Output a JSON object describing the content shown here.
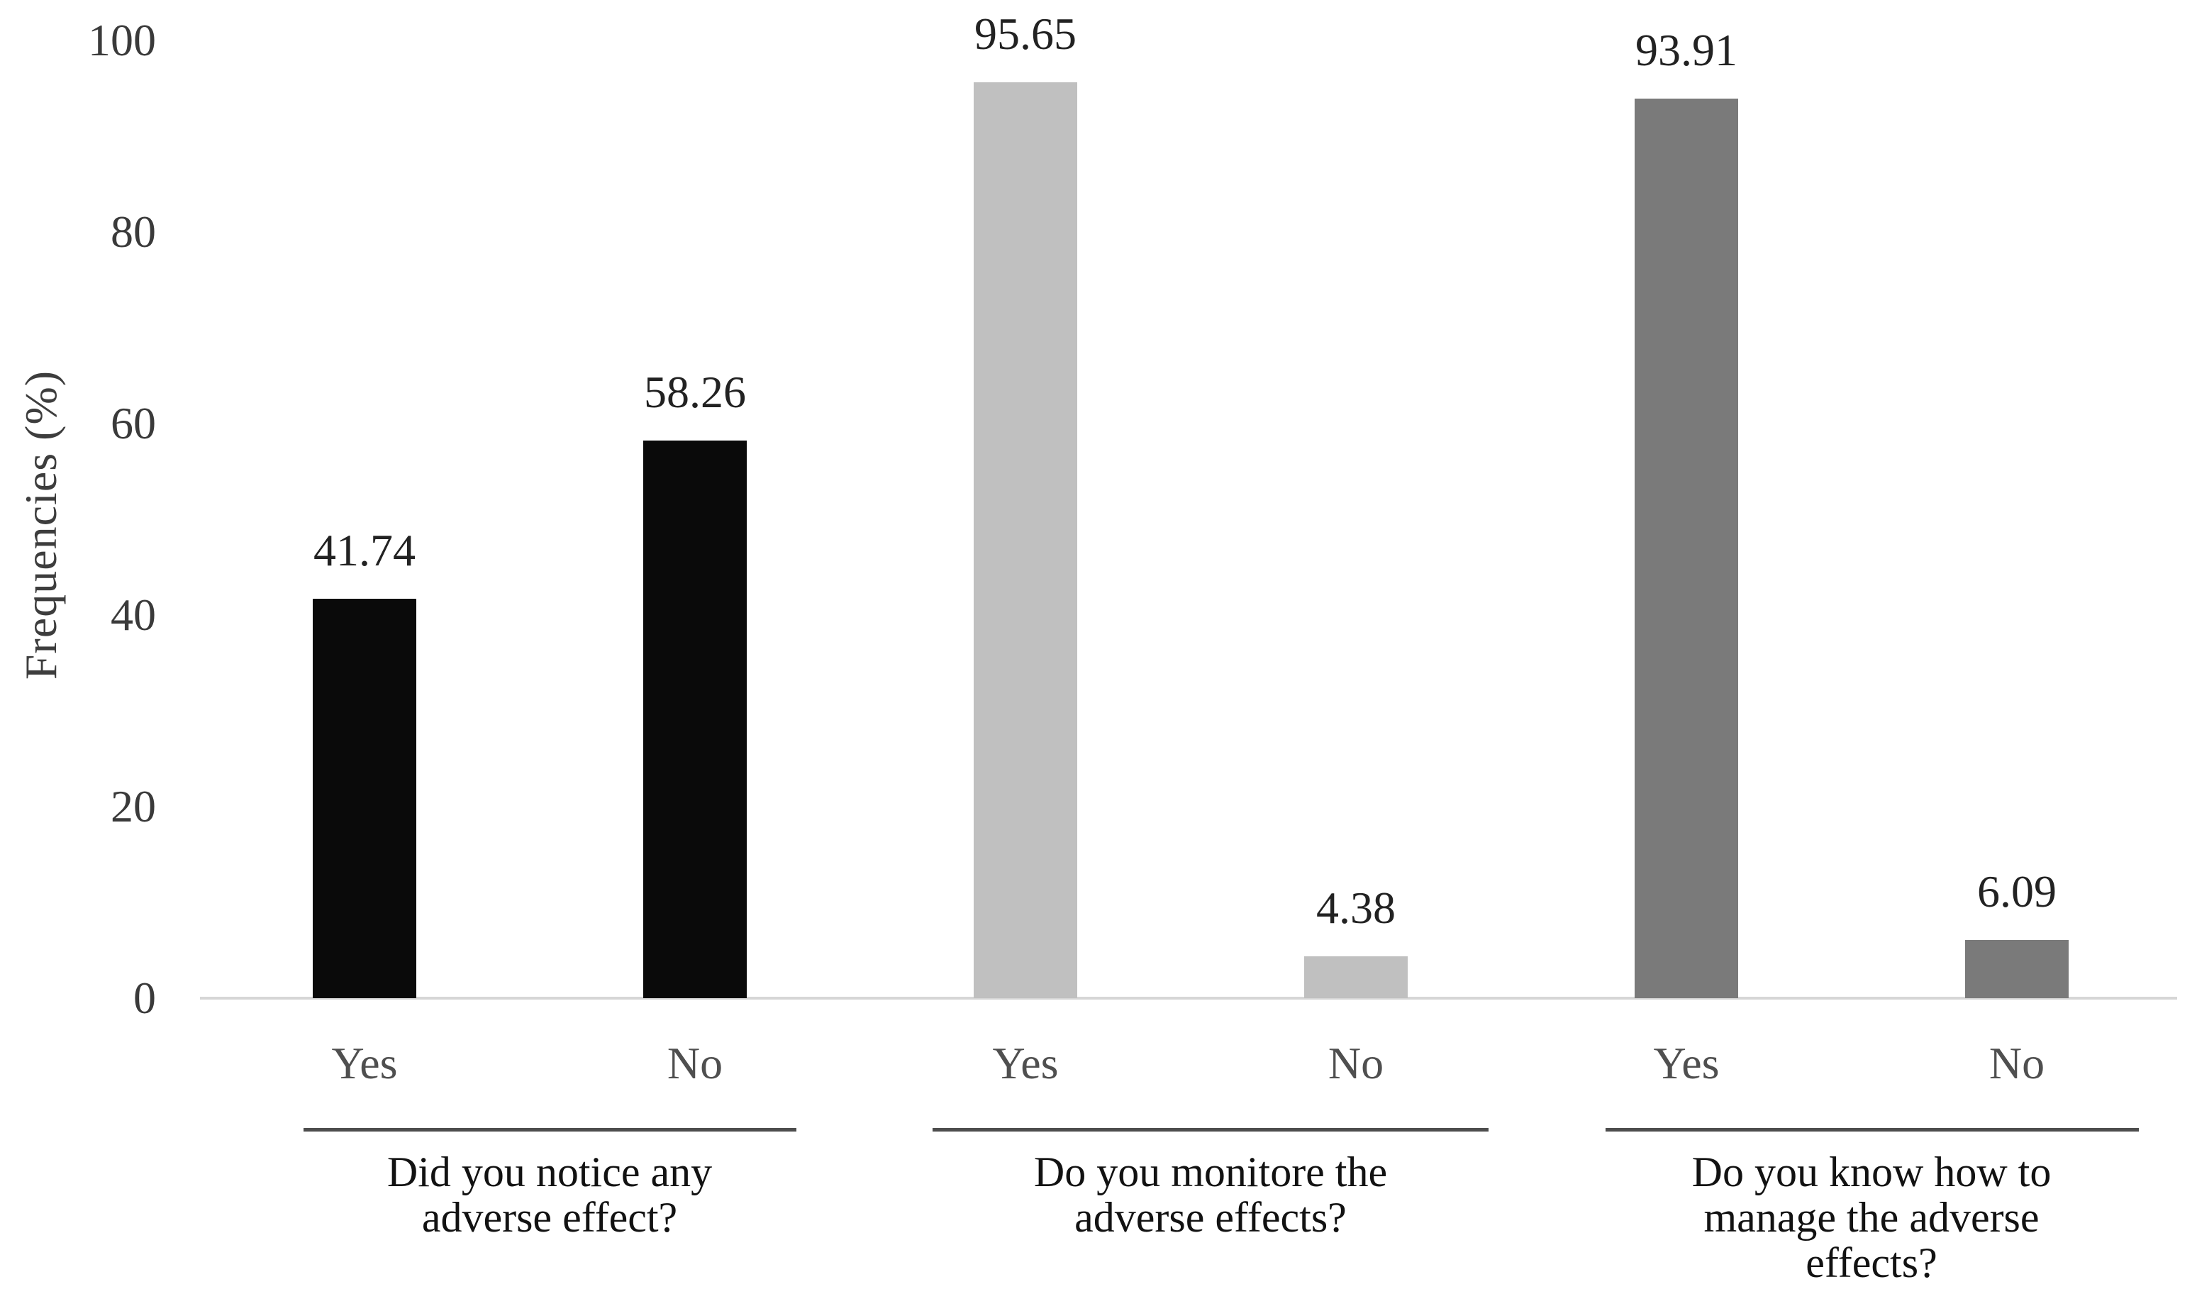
{
  "chart_data": {
    "type": "bar",
    "title": "",
    "ylabel": "Frequencies (%)",
    "xlabel": "",
    "ylim": [
      0,
      100
    ],
    "yticks": [
      0,
      20,
      40,
      60,
      80,
      100
    ],
    "grid": false,
    "legend": null,
    "categories": [
      "Yes",
      "No"
    ],
    "groups": [
      {
        "question": "Did you notice any adverse effect?",
        "question_lines": [
          "Did you notice any",
          "adverse effect?"
        ],
        "bar_color": "#0a0a0a",
        "categories": [
          "Yes",
          "No"
        ],
        "values": [
          41.74,
          58.26
        ],
        "value_labels": [
          "41.74",
          "58.26"
        ]
      },
      {
        "question": "Do you monitore the adverse effects?",
        "question_lines": [
          "Do you monitore the",
          "adverse effects?"
        ],
        "bar_color": "#c0c0c0",
        "categories": [
          "Yes",
          "No"
        ],
        "values": [
          95.65,
          4.38
        ],
        "value_labels": [
          "95.65",
          "4.38"
        ]
      },
      {
        "question": "Do you know how to manage the adverse effects?",
        "question_lines": [
          "Do you know how to",
          "manage the adverse",
          "effects?"
        ],
        "bar_color": "#7a7a7a",
        "categories": [
          "Yes",
          "No"
        ],
        "values": [
          93.91,
          6.09
        ],
        "value_labels": [
          "93.91",
          "6.09"
        ]
      }
    ],
    "colors": {
      "background": "#ffffff",
      "axis_line": "#d6d6d6",
      "tick_label": "#3a3a3a",
      "value_label": "#222222",
      "category_label": "#4f4f4f",
      "divider": "#4d4d4d",
      "question_label": "#121212",
      "y_axis_title": "#3d3d3d"
    }
  }
}
